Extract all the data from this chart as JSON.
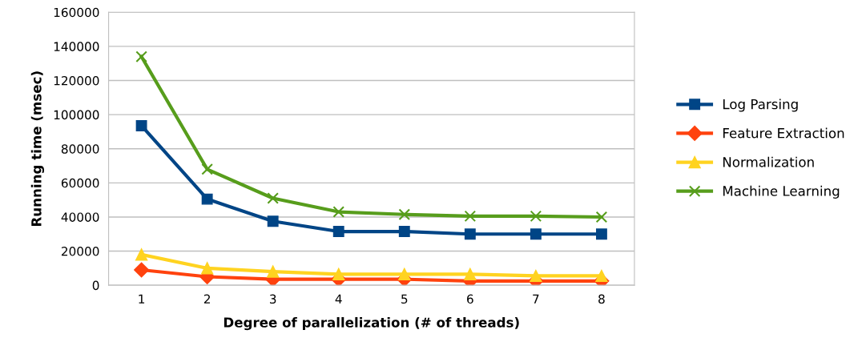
{
  "chart_data": {
    "type": "line",
    "xlabel": "Degree of parallelization (# of threads)",
    "ylabel": "Running time (msec)",
    "categories": [
      "1",
      "2",
      "3",
      "4",
      "5",
      "6",
      "7",
      "8"
    ],
    "series": [
      {
        "name": "Log Parsing",
        "color": "#004586",
        "marker": "square",
        "values": [
          93500,
          50500,
          37500,
          31500,
          31500,
          30000,
          30000,
          30000
        ]
      },
      {
        "name": "Feature Extraction",
        "color": "#ff420e",
        "marker": "diamond",
        "values": [
          9000,
          5000,
          3500,
          3500,
          3500,
          2500,
          2500,
          2500
        ]
      },
      {
        "name": "Normalization",
        "color": "#ffd320",
        "marker": "triangle",
        "values": [
          18000,
          10000,
          8000,
          6500,
          6500,
          6500,
          5500,
          5500
        ]
      },
      {
        "name": "Machine Learning",
        "color": "#579d1c",
        "marker": "cross",
        "values": [
          134000,
          68000,
          51000,
          43000,
          41500,
          40500,
          40500,
          40000
        ]
      }
    ],
    "ylim": [
      0,
      160000
    ],
    "yticks": [
      0,
      20000,
      40000,
      60000,
      80000,
      100000,
      120000,
      140000,
      160000
    ],
    "grid": "y",
    "legend": "right"
  }
}
